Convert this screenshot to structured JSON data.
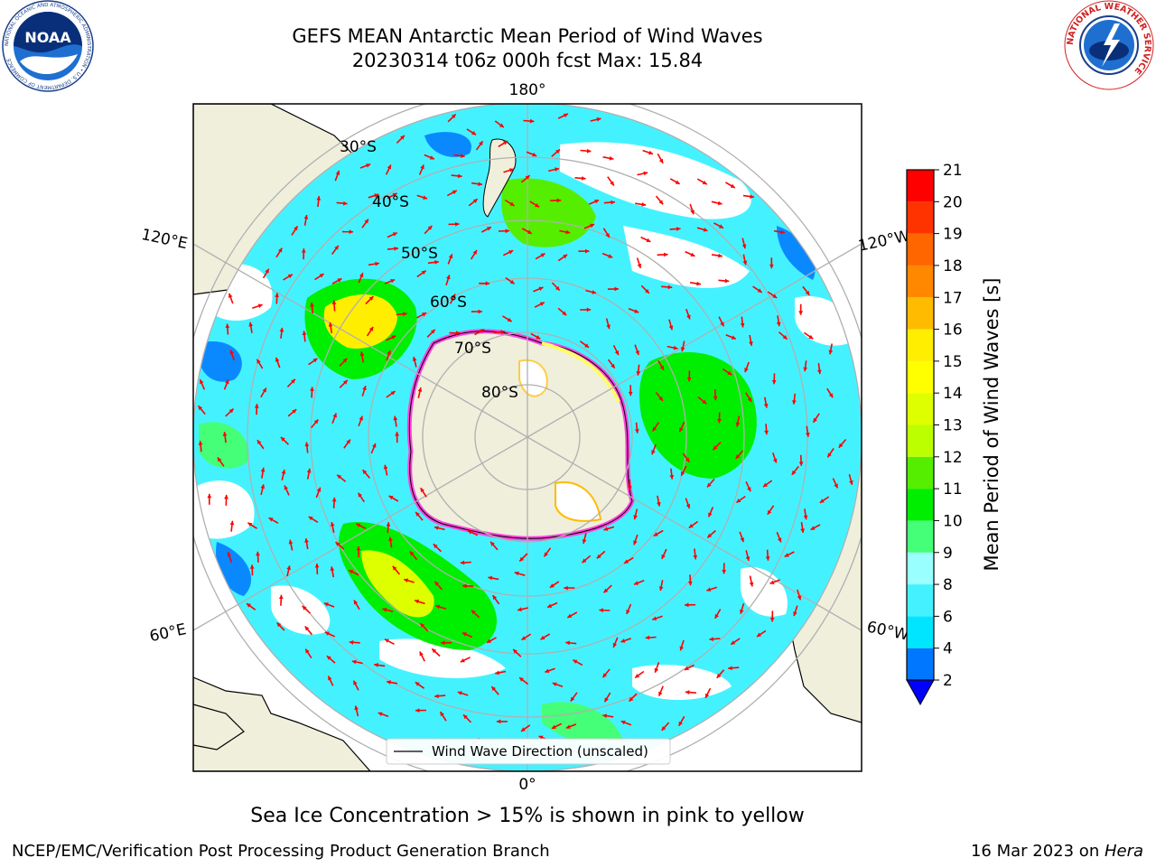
{
  "title": {
    "line1": "GEFS MEAN Antarctic Mean Period of Wind Waves",
    "line2": "20230314 t06z 000h fcst   Max: 15.84"
  },
  "map": {
    "lon_labels": {
      "top": "180°",
      "bottom": "0°",
      "left_upper": "120°E",
      "left_lower": "60°E",
      "right_upper": "120°W",
      "right_lower": "60°W"
    },
    "lat_labels": [
      "30°S",
      "40°S",
      "50°S",
      "60°S",
      "70°S",
      "80°S"
    ],
    "legend_label": "Wind Wave Direction (unscaled)",
    "colors": {
      "land": "#efefdc",
      "ocean_background": "#ffffff",
      "grid": "#b0b0b0",
      "arrow": "#ff0000",
      "sea_ice_low": "#ff44dd",
      "sea_ice_high": "#ffff66"
    }
  },
  "colorbar": {
    "label": "Mean Period of Wind Waves [s]",
    "ticks": [
      "2",
      "4",
      "6",
      "8",
      "9",
      "10",
      "11",
      "12",
      "13",
      "14",
      "15",
      "16",
      "17",
      "18",
      "19",
      "20",
      "21"
    ],
    "colors": [
      "#0077ff",
      "#00e5ff",
      "#44f2ff",
      "#99ffff",
      "#44ff77",
      "#00ee00",
      "#55ee00",
      "#bbff00",
      "#ddff00",
      "#ffff00",
      "#ffee00",
      "#ffbb00",
      "#ff8800",
      "#ff6600",
      "#ff3300",
      "#ff0000"
    ],
    "extend_color": "#0000ff"
  },
  "footer": {
    "ice_note": "Sea Ice Concentration > 15% is shown in pink to yellow",
    "credit": "NCEP/EMC/Verification Post Processing Product Generation Branch",
    "date_text": "16 Mar 2023 on ",
    "date_host": "Hera"
  },
  "logos": {
    "noaa_text": "NOAA",
    "noaa_ring": "NATIONAL OCEANIC AND ATMOSPHERIC ADMINISTRATION • U.S. DEPARTMENT OF COMMERCE",
    "nws_ring": "NATIONAL WEATHER SERVICE"
  }
}
